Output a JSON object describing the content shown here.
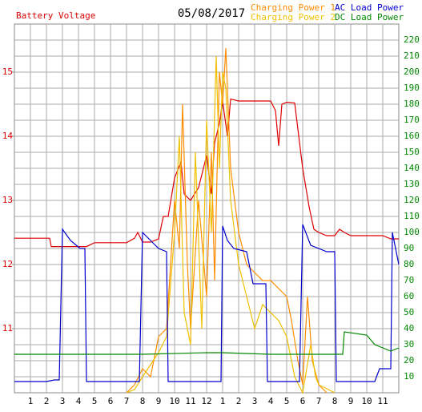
{
  "chart_data": {
    "type": "line",
    "title": "05/08/2017",
    "ylabel": "Battery Voltage",
    "xlim": [
      0,
      24
    ],
    "xticks": [
      1,
      2,
      3,
      4,
      5,
      6,
      7,
      8,
      9,
      10,
      11,
      12,
      {
        "value": 13,
        "label": "1"
      },
      {
        "value": 14,
        "label": "2"
      },
      {
        "value": 15,
        "label": "3"
      },
      {
        "value": 16,
        "label": "4"
      },
      {
        "value": 17,
        "label": "5"
      },
      {
        "value": 18,
        "label": "6"
      },
      {
        "value": 19,
        "label": "7"
      },
      {
        "value": 20,
        "label": "8"
      },
      {
        "value": 21,
        "label": "9"
      },
      {
        "value": 22,
        "label": "10"
      },
      {
        "value": 23,
        "label": "11"
      }
    ],
    "ylim": [
      10,
      15.75
    ],
    "yticks": [
      11,
      12,
      13,
      14,
      15
    ],
    "y2lim": [
      0,
      230
    ],
    "y2ticks": [
      10,
      20,
      30,
      40,
      50,
      60,
      70,
      80,
      90,
      100,
      110,
      120,
      130,
      140,
      150,
      160,
      170,
      180,
      190,
      200,
      210,
      220
    ],
    "grid": true,
    "series": [
      {
        "name": "Battery Voltage",
        "color": "#dd0000",
        "axis": "y",
        "x": [
          0,
          2.2,
          2.3,
          4.5,
          5,
          7,
          7.5,
          7.7,
          8,
          8.5,
          9,
          9.3,
          9.6,
          10,
          10.4,
          10.6,
          11,
          11.5,
          12,
          12.3,
          12.5,
          12.8,
          13,
          13.3,
          13.5,
          14,
          15,
          16,
          16.3,
          16.5,
          16.7,
          17,
          17.5,
          18,
          18.4,
          18.7,
          19,
          19.5,
          20,
          20.3,
          20.6,
          21,
          22,
          23,
          23.5,
          24
        ],
        "values": [
          12.41,
          12.41,
          12.28,
          12.28,
          12.34,
          12.34,
          12.41,
          12.5,
          12.35,
          12.35,
          12.4,
          12.75,
          12.75,
          13.35,
          13.6,
          13.1,
          13.0,
          13.2,
          13.7,
          13.1,
          13.9,
          14.2,
          14.55,
          14.0,
          14.58,
          14.55,
          14.55,
          14.55,
          14.4,
          13.85,
          14.5,
          14.53,
          14.52,
          13.5,
          12.9,
          12.55,
          12.5,
          12.45,
          12.45,
          12.55,
          12.5,
          12.45,
          12.45,
          12.45,
          12.4,
          12.4
        ]
      },
      {
        "name": "Charging Power 1",
        "color": "#ff8c00",
        "axis": "y2",
        "x": [
          7,
          7.5,
          8,
          8.5,
          9,
          9.5,
          10,
          10.3,
          10.5,
          10.8,
          11,
          11.5,
          12,
          12.3,
          12.5,
          12.8,
          13,
          13.2,
          13.5,
          14,
          14.5,
          15,
          15.5,
          16,
          17,
          17.3,
          17.7,
          18,
          18.3,
          18.6,
          19,
          19.5
        ],
        "values": [
          0,
          5,
          15,
          10,
          35,
          40,
          120,
          90,
          180,
          80,
          40,
          120,
          60,
          150,
          70,
          200,
          180,
          215,
          140,
          100,
          80,
          75,
          70,
          70,
          60,
          45,
          20,
          5,
          60,
          20,
          5,
          0
        ]
      },
      {
        "name": "Charging Power 2",
        "color": "#f0c000",
        "axis": "y2",
        "x": [
          7,
          7.5,
          8,
          9,
          9.5,
          10,
          10.3,
          10.6,
          11,
          11.3,
          11.7,
          12,
          12.3,
          12.6,
          12.8,
          13,
          13.2,
          13.5,
          14,
          14.5,
          15,
          15.5,
          16,
          16.5,
          17,
          17.5,
          18,
          18.5,
          18.8,
          19,
          20
        ],
        "values": [
          0,
          2,
          10,
          25,
          35,
          100,
          160,
          50,
          30,
          150,
          40,
          170,
          100,
          210,
          140,
          200,
          190,
          120,
          80,
          60,
          40,
          55,
          50,
          45,
          35,
          10,
          0,
          30,
          10,
          5,
          0
        ]
      },
      {
        "name": "AC Load Power",
        "color": "#0000cc",
        "axis": "y2",
        "x": [
          0,
          2,
          2.5,
          2.8,
          3,
          3.5,
          4.1,
          4.4,
          4.5,
          7.8,
          8,
          8.5,
          9,
          9.5,
          9.6,
          12.9,
          13,
          13.3,
          13.7,
          14.5,
          14.9,
          15.7,
          15.8,
          17.8,
          18,
          18.5,
          19,
          19.5,
          20,
          20.1,
          22.5,
          22.8,
          23.5,
          23.6,
          24
        ],
        "values": [
          7,
          7,
          8,
          8,
          102,
          95,
          90,
          90,
          7,
          7,
          100,
          95,
          90,
          88,
          7,
          7,
          104,
          95,
          90,
          88,
          68,
          68,
          7,
          7,
          105,
          92,
          90,
          88,
          88,
          7,
          7,
          15,
          15,
          100,
          80
        ]
      },
      {
        "name": "DC Load Power",
        "color": "#008800",
        "axis": "y2",
        "x": [
          0,
          4,
          8,
          12,
          13,
          16,
          20,
          20.5,
          20.6,
          22,
          22.5,
          23,
          23.5,
          24
        ],
        "values": [
          24,
          24,
          24,
          25,
          25,
          24,
          24,
          24,
          38,
          36,
          30,
          28,
          26,
          28
        ]
      }
    ]
  }
}
